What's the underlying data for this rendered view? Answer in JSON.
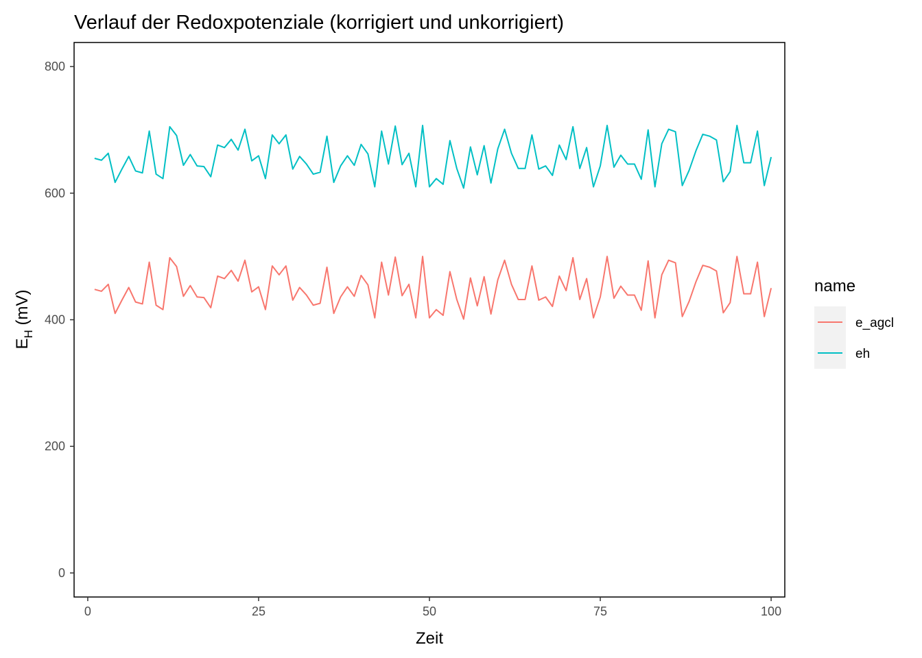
{
  "chart_data": {
    "type": "line",
    "title": "Verlauf der Redoxpotenziale (korrigiert und unkorrigiert)",
    "xlabel": "Zeit",
    "ylabel_main": "E",
    "ylabel_sub": "H",
    "ylabel_unit": " (mV)",
    "xlim": [
      -2,
      102
    ],
    "ylim": [
      -38,
      838
    ],
    "x_ticks": [
      0,
      25,
      50,
      75,
      100
    ],
    "x_tick_labels": [
      "0",
      "25",
      "50",
      "75",
      "100"
    ],
    "y_ticks": [
      0,
      200,
      400,
      600,
      800
    ],
    "y_tick_labels": [
      "0",
      "200",
      "400",
      "600",
      "800"
    ],
    "grid": false,
    "legend_title": "name",
    "legend_position": "right",
    "series": [
      {
        "name": "e_agcl",
        "color": "#F8766D",
        "x": [
          1,
          2,
          3,
          4,
          5,
          6,
          7,
          8,
          9,
          10,
          11,
          12,
          13,
          14,
          15,
          16,
          17,
          18,
          19,
          20,
          21,
          22,
          23,
          24,
          25,
          26,
          27,
          28,
          29,
          30,
          31,
          32,
          33,
          34,
          35,
          36,
          37,
          38,
          39,
          40,
          41,
          42,
          43,
          44,
          45,
          46,
          47,
          48,
          49,
          50,
          51,
          52,
          53,
          54,
          55,
          56,
          57,
          58,
          59,
          60,
          61,
          62,
          63,
          64,
          65,
          66,
          67,
          68,
          69,
          70,
          71,
          72,
          73,
          74,
          75,
          76,
          77,
          78,
          79,
          80,
          81,
          82,
          83,
          84,
          85,
          86,
          87,
          88,
          89,
          90,
          91,
          92,
          93,
          94,
          95,
          96,
          97,
          98,
          99,
          100
        ],
        "values": [
          448,
          445,
          456,
          410,
          431,
          451,
          428,
          425,
          491,
          423,
          416,
          498,
          484,
          437,
          454,
          436,
          435,
          419,
          469,
          465,
          478,
          461,
          494,
          444,
          452,
          416,
          485,
          471,
          485,
          431,
          451,
          439,
          423,
          426,
          483,
          410,
          436,
          452,
          437,
          470,
          455,
          403,
          491,
          439,
          499,
          438,
          456,
          403,
          500,
          403,
          416,
          407,
          476,
          432,
          401,
          466,
          422,
          468,
          409,
          463,
          494,
          456,
          432,
          432,
          485,
          431,
          436,
          421,
          469,
          446,
          498,
          432,
          465,
          403,
          436,
          500,
          434,
          453,
          439,
          439,
          415,
          493,
          403,
          471,
          494,
          490,
          405,
          429,
          460,
          486,
          483,
          477,
          411,
          427,
          500,
          441,
          441,
          491,
          405,
          450
        ]
      },
      {
        "name": "eh",
        "color": "#00BFC4",
        "x": [
          1,
          2,
          3,
          4,
          5,
          6,
          7,
          8,
          9,
          10,
          11,
          12,
          13,
          14,
          15,
          16,
          17,
          18,
          19,
          20,
          21,
          22,
          23,
          24,
          25,
          26,
          27,
          28,
          29,
          30,
          31,
          32,
          33,
          34,
          35,
          36,
          37,
          38,
          39,
          40,
          41,
          42,
          43,
          44,
          45,
          46,
          47,
          48,
          49,
          50,
          51,
          52,
          53,
          54,
          55,
          56,
          57,
          58,
          59,
          60,
          61,
          62,
          63,
          64,
          65,
          66,
          67,
          68,
          69,
          70,
          71,
          72,
          73,
          74,
          75,
          76,
          77,
          78,
          79,
          80,
          81,
          82,
          83,
          84,
          85,
          86,
          87,
          88,
          89,
          90,
          91,
          92,
          93,
          94,
          95,
          96,
          97,
          98,
          99,
          100
        ],
        "values": [
          655,
          652,
          663,
          617,
          638,
          658,
          635,
          632,
          698,
          630,
          623,
          705,
          691,
          644,
          661,
          643,
          642,
          626,
          676,
          672,
          685,
          668,
          701,
          651,
          659,
          623,
          692,
          678,
          692,
          638,
          658,
          646,
          630,
          633,
          690,
          617,
          643,
          659,
          644,
          677,
          662,
          610,
          698,
          646,
          706,
          645,
          663,
          610,
          707,
          610,
          623,
          614,
          683,
          639,
          608,
          673,
          629,
          675,
          616,
          670,
          701,
          663,
          639,
          639,
          692,
          638,
          643,
          628,
          676,
          653,
          705,
          639,
          672,
          610,
          643,
          707,
          641,
          660,
          646,
          646,
          622,
          700,
          610,
          678,
          701,
          697,
          612,
          636,
          667,
          693,
          690,
          684,
          618,
          634,
          707,
          648,
          648,
          698,
          612,
          657
        ]
      }
    ]
  }
}
